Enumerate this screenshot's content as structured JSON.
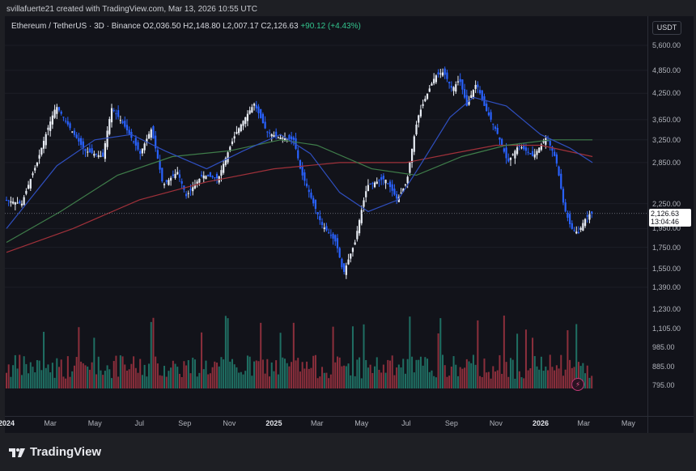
{
  "header": {
    "attribution": "svillafuerte21 created with TradingView.com, Mar 13, 2026 10:55 UTC"
  },
  "legend": {
    "symbol": "Ethereum / TetherUS · 3D · Binance",
    "open": "O2,036.50",
    "high": "H2,148.80",
    "low": "L2,007.17",
    "close": "C2,126.63",
    "change": "+90.12 (+4.43%)"
  },
  "currency_button": "USDT",
  "last_price": {
    "price": "2,126.63",
    "countdown": "13:04:46"
  },
  "brand": {
    "name": "TradingView"
  },
  "icons": {
    "logo": "tradingview-logo-icon",
    "alert": "lightning-bolt-icon"
  },
  "colors": {
    "up": "#e8ecf4",
    "down": "#2962ff",
    "vol_up": "#1f6f63",
    "vol_down": "#8c2f3c",
    "ma_fast": "#2f4fbf",
    "ma_mid": "#3f7d4a",
    "ma_slow": "#a0313a",
    "change": "#32c48d"
  },
  "chart_data": {
    "type": "candlestick",
    "title": "Ethereum / TetherUS · 3D · Binance",
    "y_ticks": [
      "5,600.00",
      "4,850.00",
      "4,250.00",
      "3,650.00",
      "3,250.00",
      "2,850.00",
      "2,250.00",
      "1,950.00",
      "1,750.00",
      "1,550.00",
      "1,390.00",
      "1,230.00",
      "1,105.00",
      "985.00",
      "885.00",
      "795.00"
    ],
    "x_ticks": [
      "2024",
      "Mar",
      "May",
      "Jul",
      "Sep",
      "Nov",
      "2025",
      "Mar",
      "May",
      "Jul",
      "Sep",
      "Nov",
      "2026",
      "Mar",
      "May"
    ],
    "bold_x_ticks": [
      "2024",
      "2025",
      "2026"
    ],
    "price_points": [
      [
        "2024-01-01",
        2300
      ],
      [
        "2024-01-25",
        2250
      ],
      [
        "2024-02-15",
        2850
      ],
      [
        "2024-03-12",
        3950
      ],
      [
        "2024-04-01",
        3450
      ],
      [
        "2024-04-20",
        3050
      ],
      [
        "2024-05-15",
        2950
      ],
      [
        "2024-05-27",
        3900
      ],
      [
        "2024-06-10",
        3600
      ],
      [
        "2024-07-05",
        3000
      ],
      [
        "2024-07-20",
        3450
      ],
      [
        "2024-08-05",
        2500
      ],
      [
        "2024-08-25",
        2700
      ],
      [
        "2024-09-06",
        2350
      ],
      [
        "2024-09-28",
        2650
      ],
      [
        "2024-10-20",
        2600
      ],
      [
        "2024-11-12",
        3350
      ],
      [
        "2024-12-08",
        4000
      ],
      [
        "2024-12-25",
        3400
      ],
      [
        "2025-01-10",
        3300
      ],
      [
        "2025-01-31",
        3250
      ],
      [
        "2025-02-10",
        2700
      ],
      [
        "2025-02-25",
        2300
      ],
      [
        "2025-03-10",
        2000
      ],
      [
        "2025-03-30",
        1800
      ],
      [
        "2025-04-09",
        1500
      ],
      [
        "2025-04-25",
        1800
      ],
      [
        "2025-05-12",
        2500
      ],
      [
        "2025-06-05",
        2600
      ],
      [
        "2025-06-22",
        2300
      ],
      [
        "2025-07-05",
        2550
      ],
      [
        "2025-07-20",
        3700
      ],
      [
        "2025-08-13",
        4700
      ],
      [
        "2025-08-24",
        4800
      ],
      [
        "2025-09-05",
        4350
      ],
      [
        "2025-09-15",
        4600
      ],
      [
        "2025-09-25",
        3950
      ],
      [
        "2025-10-08",
        4500
      ],
      [
        "2025-10-20",
        3900
      ],
      [
        "2025-11-05",
        3400
      ],
      [
        "2025-11-20",
        2850
      ],
      [
        "2025-12-05",
        3150
      ],
      [
        "2025-12-25",
        2950
      ],
      [
        "2026-01-12",
        3300
      ],
      [
        "2026-01-25",
        2900
      ],
      [
        "2026-02-05",
        2200
      ],
      [
        "2026-02-15",
        1950
      ],
      [
        "2026-02-25",
        1900
      ],
      [
        "2026-03-05",
        2050
      ],
      [
        "2026-03-13",
        2126.63
      ]
    ],
    "ma_fast_points": [
      [
        "2024-01-01",
        1950
      ],
      [
        "2024-03-10",
        2800
      ],
      [
        "2024-05-01",
        3250
      ],
      [
        "2024-06-20",
        3350
      ],
      [
        "2024-08-05",
        3050
      ],
      [
        "2024-10-01",
        2750
      ],
      [
        "2024-11-20",
        3050
      ],
      [
        "2025-01-10",
        3350
      ],
      [
        "2025-02-20",
        3000
      ],
      [
        "2025-04-01",
        2400
      ],
      [
        "2025-05-10",
        2150
      ],
      [
        "2025-06-20",
        2300
      ],
      [
        "2025-07-20",
        2800
      ],
      [
        "2025-08-30",
        3700
      ],
      [
        "2025-10-01",
        4150
      ],
      [
        "2025-11-15",
        3950
      ],
      [
        "2026-01-01",
        3350
      ],
      [
        "2026-02-10",
        3100
      ],
      [
        "2026-03-13",
        2850
      ]
    ],
    "ma_mid_points": [
      [
        "2024-01-01",
        1800
      ],
      [
        "2024-03-15",
        2150
      ],
      [
        "2024-06-01",
        2650
      ],
      [
        "2024-08-15",
        2950
      ],
      [
        "2024-11-01",
        3050
      ],
      [
        "2025-01-10",
        3250
      ],
      [
        "2025-03-01",
        3150
      ],
      [
        "2025-05-15",
        2750
      ],
      [
        "2025-07-15",
        2650
      ],
      [
        "2025-09-15",
        2950
      ],
      [
        "2025-11-15",
        3150
      ],
      [
        "2026-01-15",
        3250
      ],
      [
        "2026-03-13",
        3250
      ]
    ],
    "ma_slow_points": [
      [
        "2024-01-01",
        1700
      ],
      [
        "2024-04-01",
        1950
      ],
      [
        "2024-07-01",
        2300
      ],
      [
        "2024-10-01",
        2550
      ],
      [
        "2025-01-01",
        2750
      ],
      [
        "2025-04-01",
        2850
      ],
      [
        "2025-07-01",
        2850
      ],
      [
        "2025-09-01",
        3000
      ],
      [
        "2025-11-01",
        3150
      ],
      [
        "2026-01-01",
        3150
      ],
      [
        "2026-03-13",
        2950
      ]
    ],
    "volume_level": "low",
    "grid": true,
    "legend_position": "top-left"
  }
}
